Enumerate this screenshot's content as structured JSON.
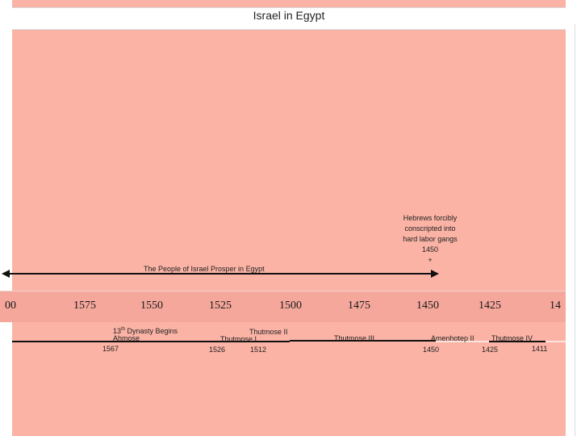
{
  "title": "Israel in Egypt",
  "years": [
    "00",
    "1575",
    "1550",
    "1525",
    "1500",
    "1475",
    "1450",
    "1425",
    "14"
  ],
  "note": {
    "lines": [
      "Hebrews forcibly",
      "conscripted into",
      "hard labor gangs",
      "1450",
      "+"
    ]
  },
  "prosper_label": "The People of Israel Prosper in Egypt",
  "labels": {
    "dynasty_line1": "13th Dynasty Begins",
    "dynasty_line2": "Ahmose",
    "ahmose_year": "1567",
    "thutmose1": "Thutmose I",
    "thutmose2": "Thutmose II",
    "thutmose1_year": "1526",
    "thutmose2_year": "1512",
    "thutmose3": "Thutmose III",
    "amenhotep2": "Amenhotep II",
    "amenhotep2_year": "1450",
    "thutmose4": "Thutmose IV",
    "thutmose4_year": "1425",
    "thutmose4_end": "1411"
  },
  "colors": {
    "background": "#fbb3a5",
    "year_band": "#f5a79b",
    "line": "#111111",
    "line_light": "#fbe3dd"
  }
}
